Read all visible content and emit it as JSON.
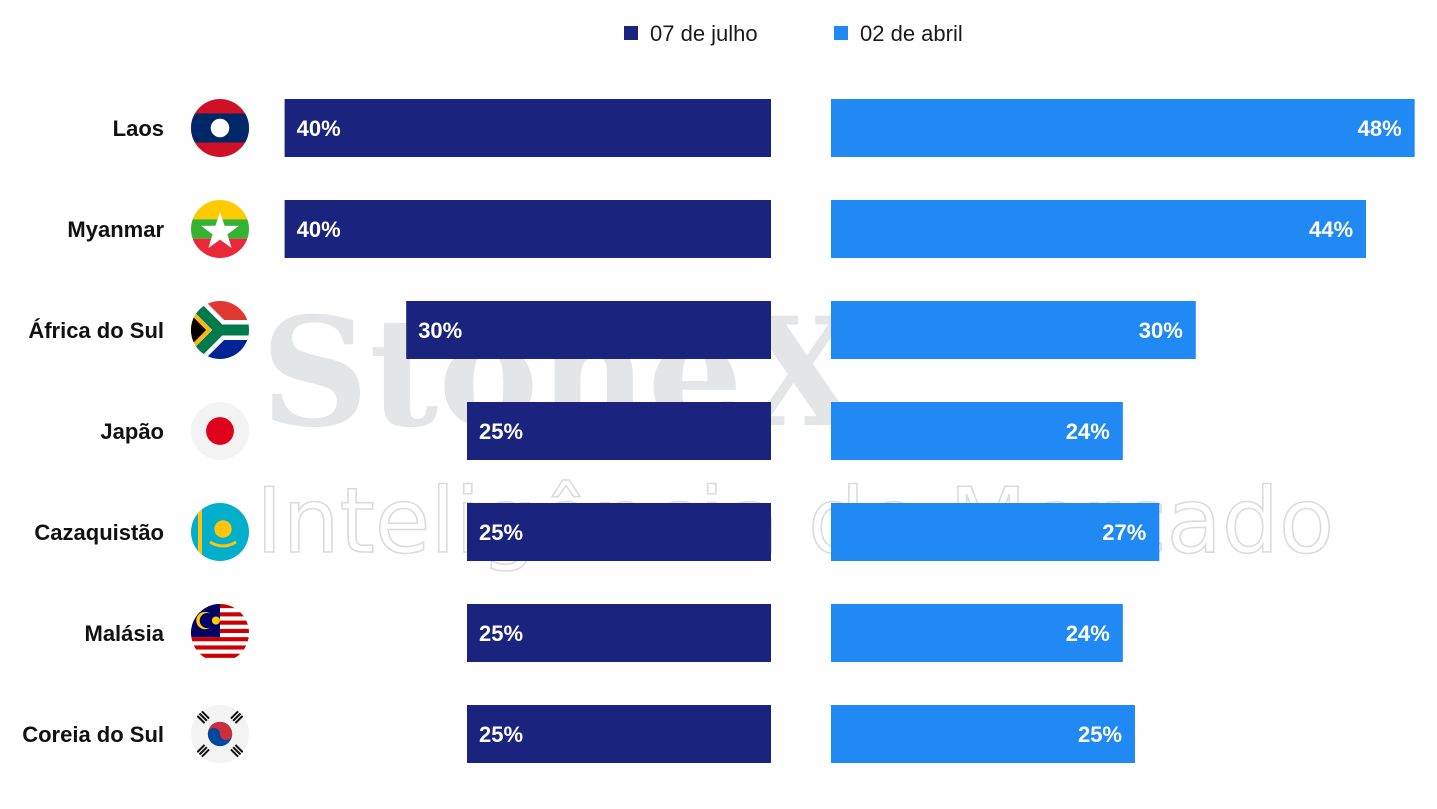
{
  "watermark": {
    "brand": "StoneX",
    "tagline": "Inteligência de Mercado"
  },
  "chart_data": {
    "type": "bar",
    "orientation": "horizontal",
    "layout": "diverging",
    "categories": [
      "Laos",
      "Myanmar",
      "África do Sul",
      "Japão",
      "Cazaquistão",
      "Malásia",
      "Coreia do Sul"
    ],
    "flags": [
      "laos-flag-icon",
      "myanmar-flag-icon",
      "south-africa-flag-icon",
      "japan-flag-icon",
      "kazakhstan-flag-icon",
      "malaysia-flag-icon",
      "south-korea-flag-icon"
    ],
    "series": [
      {
        "name": "07 de julho",
        "color": "#1a237e",
        "values": [
          40,
          40,
          30,
          25,
          25,
          25,
          25
        ],
        "labels": [
          "40%",
          "40%",
          "30%",
          "25%",
          "25%",
          "25%",
          "25%"
        ]
      },
      {
        "name": "02 de abril",
        "color": "#2089f4",
        "values": [
          48,
          44,
          30,
          24,
          27,
          24,
          25
        ],
        "labels": [
          "48%",
          "44%",
          "30%",
          "24%",
          "27%",
          "24%",
          "25%"
        ]
      }
    ],
    "legend": "top-center",
    "grid": false
  }
}
